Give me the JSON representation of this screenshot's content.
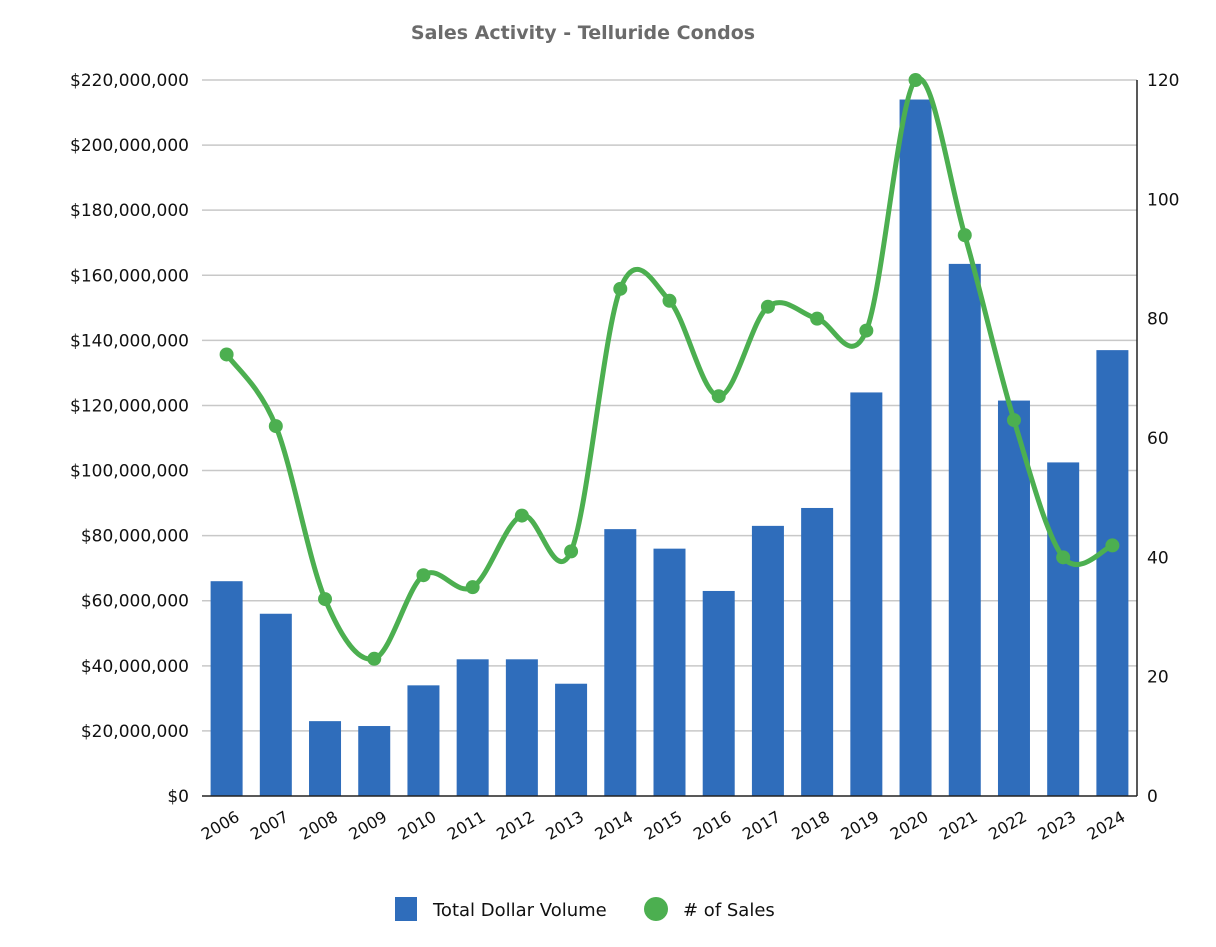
{
  "chart_data": {
    "type": "bar",
    "title": "Sales Activity - Telluride Condos",
    "categories": [
      "2006",
      "2007",
      "2008",
      "2009",
      "2010",
      "2011",
      "2012",
      "2013",
      "2014",
      "2015",
      "2016",
      "2017",
      "2018",
      "2019",
      "2020",
      "2021",
      "2022",
      "2023",
      "2024"
    ],
    "series": [
      {
        "name": "Total Dollar Volume",
        "type": "bar",
        "axis": "left",
        "color": "#2f6dbb",
        "values": [
          66000000,
          56000000,
          23000000,
          21500000,
          34000000,
          42000000,
          42000000,
          34500000,
          82000000,
          76000000,
          63000000,
          83000000,
          88500000,
          124000000,
          214000000,
          163500000,
          121500000,
          102500000,
          137000000
        ]
      },
      {
        "name": "# of Sales",
        "type": "line",
        "axis": "right",
        "color": "#4caf50",
        "values": [
          74,
          62,
          33,
          23,
          37,
          35,
          47,
          41,
          85,
          83,
          67,
          82,
          80,
          78,
          120,
          94,
          63,
          40,
          42
        ]
      }
    ],
    "y_left": {
      "min": 0,
      "max": 220000000,
      "ticks": [
        "$0",
        "$20,000,000",
        "$40,000,000",
        "$60,000,000",
        "$80,000,000",
        "$100,000,000",
        "$120,000,000",
        "$140,000,000",
        "$160,000,000",
        "$180,000,000",
        "$200,000,000",
        "$220,000,000"
      ]
    },
    "y_right": {
      "min": 0,
      "max": 120,
      "ticks": [
        "0",
        "20",
        "40",
        "60",
        "80",
        "100",
        "120"
      ]
    },
    "grid": true,
    "legend_position": "bottom"
  }
}
